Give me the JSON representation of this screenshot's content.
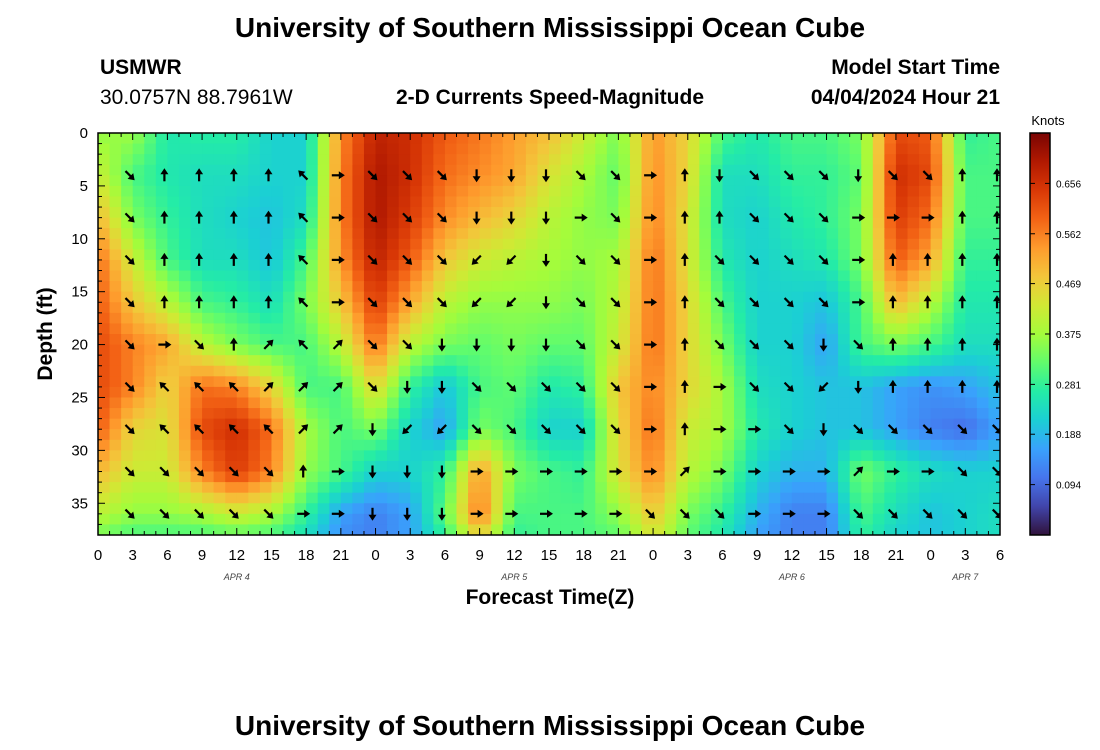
{
  "header": {
    "title": "University of Southern Mississippi Ocean Cube",
    "station": "USMWR",
    "coords": "30.0757N  88.7961W",
    "subtitle": "2-D Currents Speed-Magnitude",
    "model_start_label": "Model Start Time",
    "model_start_value": "04/04/2024 Hour 21"
  },
  "footer": {
    "title": "University of Southern Mississippi Ocean Cube"
  },
  "chart_data": {
    "type": "heatmap",
    "title": "2-D Currents Speed-Magnitude",
    "xlabel": "Forecast Time(Z)",
    "ylabel": "Depth (ft)",
    "x_range_hours": [
      0,
      78
    ],
    "y_range_ft": [
      0,
      38
    ],
    "x_ticks": [
      {
        "h": 0,
        "label": "0"
      },
      {
        "h": 3,
        "label": "3"
      },
      {
        "h": 6,
        "label": "6"
      },
      {
        "h": 9,
        "label": "9"
      },
      {
        "h": 12,
        "label": "12"
      },
      {
        "h": 15,
        "label": "15"
      },
      {
        "h": 18,
        "label": "18"
      },
      {
        "h": 21,
        "label": "21"
      },
      {
        "h": 24,
        "label": "0"
      },
      {
        "h": 27,
        "label": "3"
      },
      {
        "h": 30,
        "label": "6"
      },
      {
        "h": 33,
        "label": "9"
      },
      {
        "h": 36,
        "label": "12"
      },
      {
        "h": 39,
        "label": "15"
      },
      {
        "h": 42,
        "label": "18"
      },
      {
        "h": 45,
        "label": "21"
      },
      {
        "h": 48,
        "label": "0"
      },
      {
        "h": 51,
        "label": "3"
      },
      {
        "h": 54,
        "label": "6"
      },
      {
        "h": 57,
        "label": "9"
      },
      {
        "h": 60,
        "label": "12"
      },
      {
        "h": 63,
        "label": "15"
      },
      {
        "h": 66,
        "label": "18"
      },
      {
        "h": 69,
        "label": "21"
      },
      {
        "h": 72,
        "label": "0"
      },
      {
        "h": 75,
        "label": "3"
      },
      {
        "h": 78,
        "label": "6"
      }
    ],
    "date_labels": [
      {
        "h": 12,
        "label": "APR 4"
      },
      {
        "h": 36,
        "label": "APR 5"
      },
      {
        "h": 60,
        "label": "APR 6"
      },
      {
        "h": 75,
        "label": "APR 7"
      }
    ],
    "y_ticks": [
      0,
      5,
      10,
      15,
      20,
      25,
      30,
      35
    ],
    "colorbar": {
      "label": "Knots",
      "min": 0.0,
      "max": 0.75,
      "ticks": [
        "0.656",
        "0.562",
        "0.469",
        "0.375",
        "0.281",
        "0.188",
        "0.094"
      ],
      "stops": [
        "#30123b",
        "#4145ab",
        "#4675ed",
        "#39a2fc",
        "#1bcfd4",
        "#24eca6",
        "#61fc6c",
        "#a4fc3b",
        "#d1e834",
        "#f3c63a",
        "#fe9b2d",
        "#f36315",
        "#d93806",
        "#b11901",
        "#7a0403"
      ]
    },
    "speed_knots": {
      "depths_ft": [
        0,
        4,
        8,
        12,
        16,
        20,
        24,
        28,
        32,
        36,
        38
      ],
      "times_h": [
        0,
        3,
        6,
        9,
        12,
        15,
        18,
        21,
        24,
        27,
        30,
        33,
        36,
        39,
        42,
        45,
        48,
        51,
        54,
        57,
        60,
        63,
        66,
        69,
        72,
        75,
        78
      ],
      "values": [
        [
          0.36,
          0.37,
          0.26,
          0.27,
          0.27,
          0.22,
          0.22,
          0.55,
          0.68,
          0.66,
          0.6,
          0.57,
          0.53,
          0.49,
          0.42,
          0.34,
          0.54,
          0.46,
          0.3,
          0.26,
          0.3,
          0.3,
          0.34,
          0.62,
          0.6,
          0.28,
          0.3
        ],
        [
          0.42,
          0.3,
          0.26,
          0.24,
          0.24,
          0.22,
          0.22,
          0.56,
          0.7,
          0.66,
          0.58,
          0.55,
          0.52,
          0.44,
          0.38,
          0.32,
          0.55,
          0.46,
          0.24,
          0.24,
          0.28,
          0.28,
          0.32,
          0.66,
          0.62,
          0.3,
          0.3
        ],
        [
          0.5,
          0.34,
          0.28,
          0.24,
          0.22,
          0.2,
          0.24,
          0.56,
          0.7,
          0.64,
          0.55,
          0.5,
          0.46,
          0.4,
          0.36,
          0.34,
          0.56,
          0.44,
          0.24,
          0.22,
          0.26,
          0.28,
          0.34,
          0.64,
          0.58,
          0.3,
          0.3
        ],
        [
          0.58,
          0.42,
          0.3,
          0.24,
          0.24,
          0.2,
          0.3,
          0.54,
          0.68,
          0.6,
          0.48,
          0.42,
          0.4,
          0.38,
          0.36,
          0.38,
          0.58,
          0.44,
          0.26,
          0.22,
          0.24,
          0.26,
          0.34,
          0.6,
          0.52,
          0.28,
          0.28
        ],
        [
          0.6,
          0.48,
          0.4,
          0.3,
          0.28,
          0.24,
          0.34,
          0.48,
          0.64,
          0.52,
          0.4,
          0.36,
          0.36,
          0.36,
          0.34,
          0.4,
          0.58,
          0.46,
          0.3,
          0.22,
          0.22,
          0.2,
          0.3,
          0.5,
          0.4,
          0.26,
          0.26
        ],
        [
          0.62,
          0.56,
          0.52,
          0.4,
          0.34,
          0.3,
          0.3,
          0.4,
          0.58,
          0.4,
          0.34,
          0.32,
          0.34,
          0.32,
          0.32,
          0.42,
          0.58,
          0.46,
          0.34,
          0.22,
          0.22,
          0.16,
          0.3,
          0.34,
          0.3,
          0.24,
          0.24
        ],
        [
          0.62,
          0.56,
          0.46,
          0.58,
          0.56,
          0.46,
          0.3,
          0.3,
          0.46,
          0.28,
          0.2,
          0.3,
          0.32,
          0.26,
          0.28,
          0.48,
          0.56,
          0.46,
          0.38,
          0.24,
          0.22,
          0.2,
          0.2,
          0.16,
          0.14,
          0.16,
          0.2
        ],
        [
          0.6,
          0.46,
          0.44,
          0.62,
          0.66,
          0.58,
          0.38,
          0.3,
          0.34,
          0.22,
          0.16,
          0.34,
          0.3,
          0.22,
          0.22,
          0.46,
          0.58,
          0.42,
          0.38,
          0.26,
          0.22,
          0.2,
          0.2,
          0.16,
          0.12,
          0.1,
          0.16
        ],
        [
          0.5,
          0.42,
          0.42,
          0.56,
          0.64,
          0.56,
          0.36,
          0.3,
          0.22,
          0.22,
          0.28,
          0.54,
          0.34,
          0.3,
          0.28,
          0.44,
          0.56,
          0.4,
          0.34,
          0.22,
          0.18,
          0.18,
          0.34,
          0.28,
          0.24,
          0.22,
          0.22
        ],
        [
          0.4,
          0.36,
          0.36,
          0.38,
          0.42,
          0.38,
          0.28,
          0.16,
          0.12,
          0.16,
          0.32,
          0.58,
          0.3,
          0.3,
          0.3,
          0.36,
          0.48,
          0.34,
          0.28,
          0.18,
          0.12,
          0.12,
          0.3,
          0.24,
          0.2,
          0.22,
          0.24
        ],
        [
          0.34,
          0.3,
          0.3,
          0.3,
          0.32,
          0.3,
          0.24,
          0.14,
          0.12,
          0.16,
          0.28,
          0.46,
          0.28,
          0.3,
          0.3,
          0.32,
          0.44,
          0.32,
          0.26,
          0.16,
          0.12,
          0.12,
          0.28,
          0.22,
          0.2,
          0.22,
          0.24
        ]
      ]
    },
    "vectors": {
      "times_h": [
        3,
        6,
        9,
        12,
        15,
        18,
        21,
        24,
        27,
        30,
        33,
        36,
        39,
        42,
        45,
        48,
        51,
        54,
        57,
        60,
        63,
        66,
        69,
        72,
        75,
        78
      ],
      "depths_ft": [
        4,
        8,
        12,
        16,
        20,
        24,
        28,
        32,
        36
      ],
      "angles_deg": [
        [
          135,
          0,
          0,
          0,
          0,
          315,
          90,
          135,
          135,
          135,
          180,
          180,
          180,
          135,
          135,
          90,
          0,
          180,
          135,
          135,
          135,
          180,
          135,
          135,
          0,
          0
        ],
        [
          135,
          0,
          0,
          0,
          0,
          315,
          90,
          135,
          135,
          135,
          180,
          180,
          180,
          90,
          135,
          90,
          0,
          0,
          135,
          135,
          135,
          90,
          90,
          90,
          0,
          0
        ],
        [
          135,
          0,
          0,
          0,
          0,
          315,
          90,
          135,
          135,
          135,
          225,
          225,
          180,
          135,
          135,
          90,
          0,
          135,
          135,
          135,
          135,
          90,
          0,
          0,
          0,
          0
        ],
        [
          135,
          0,
          0,
          0,
          0,
          315,
          90,
          135,
          135,
          135,
          225,
          225,
          180,
          135,
          135,
          90,
          0,
          135,
          135,
          135,
          135,
          90,
          0,
          0,
          0,
          0
        ],
        [
          135,
          90,
          135,
          0,
          45,
          315,
          45,
          135,
          135,
          180,
          180,
          180,
          180,
          135,
          135,
          90,
          0,
          135,
          135,
          135,
          180,
          135,
          0,
          0,
          0,
          0
        ],
        [
          135,
          315,
          315,
          315,
          45,
          45,
          45,
          135,
          180,
          180,
          135,
          135,
          135,
          135,
          135,
          90,
          0,
          90,
          135,
          135,
          225,
          180,
          0,
          0,
          0,
          0
        ],
        [
          135,
          315,
          315,
          315,
          315,
          45,
          45,
          180,
          225,
          225,
          135,
          135,
          135,
          135,
          135,
          90,
          0,
          90,
          90,
          135,
          180,
          135,
          135,
          135,
          135,
          135
        ],
        [
          135,
          135,
          135,
          135,
          135,
          0,
          90,
          180,
          180,
          180,
          90,
          90,
          90,
          90,
          90,
          90,
          45,
          90,
          90,
          90,
          90,
          45,
          90,
          90,
          135,
          135
        ],
        [
          135,
          135,
          135,
          135,
          135,
          90,
          90,
          180,
          180,
          180,
          90,
          90,
          90,
          90,
          90,
          135,
          135,
          135,
          90,
          90,
          90,
          135,
          135,
          135,
          135,
          135
        ]
      ]
    }
  }
}
